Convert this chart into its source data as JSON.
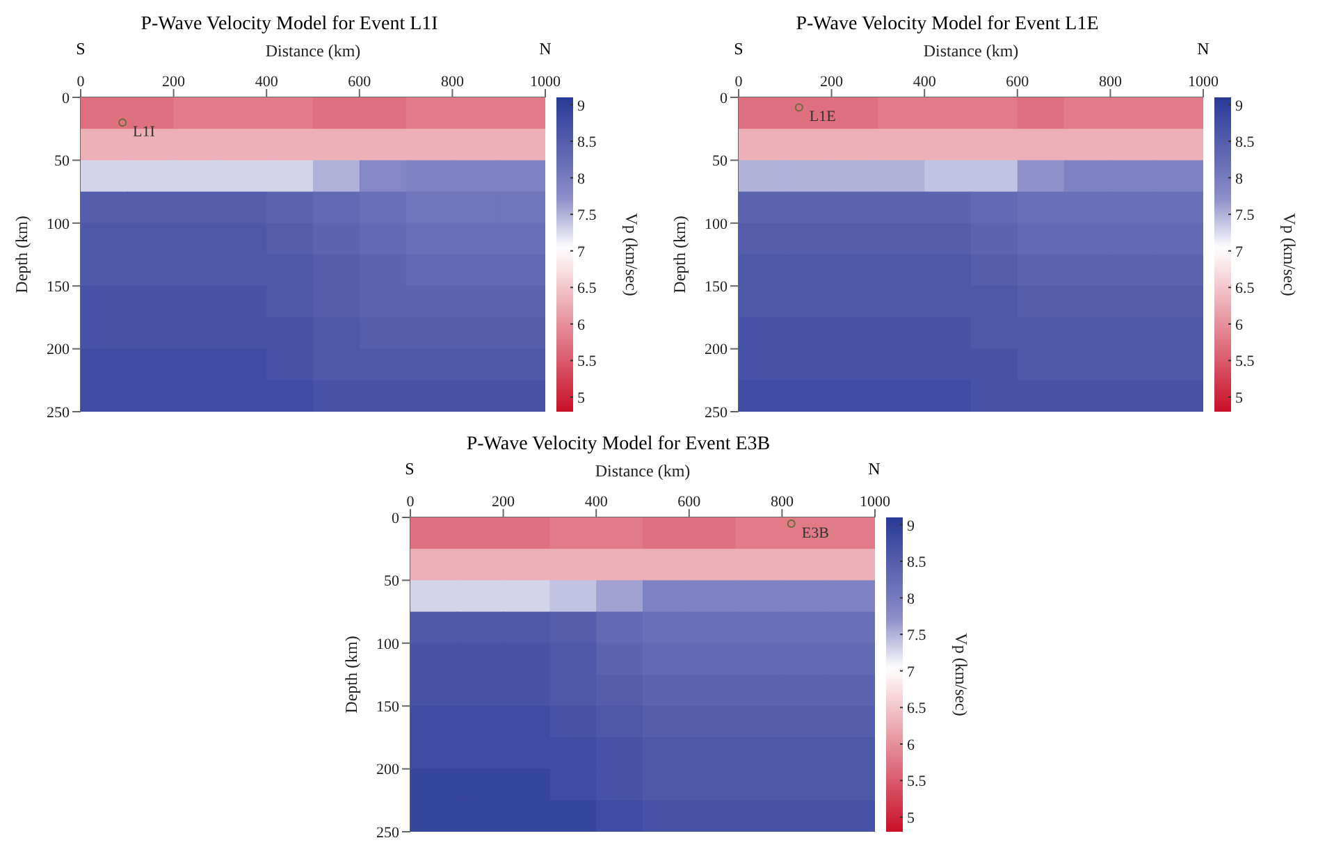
{
  "chart_data": [
    {
      "type": "heatmap",
      "title": "P-Wave Velocity Model for Event L1I",
      "xlabel": "Distance (km)",
      "ylabel": "Depth (km)",
      "clabel": "Vp (km/sec)",
      "xlim": [
        0,
        1000
      ],
      "xticks": [
        0,
        200,
        400,
        600,
        800,
        1000
      ],
      "ylim": [
        250,
        0
      ],
      "yticks": [
        0,
        50,
        100,
        150,
        200,
        250
      ],
      "clim": [
        4.8,
        9.1
      ],
      "cticks": [
        5,
        5.5,
        6,
        6.5,
        7,
        7.5,
        8,
        8.5,
        9
      ],
      "annotations": [
        "S",
        "N",
        {
          "text": "L1I",
          "x": 90,
          "y": 20
        }
      ],
      "cells": [
        [
          5.7,
          5.7,
          5.8,
          5.8,
          5.8,
          5.7,
          5.7,
          5.8,
          5.8,
          5.8
        ],
        [
          6.3,
          6.3,
          6.3,
          6.3,
          6.3,
          6.3,
          6.3,
          6.3,
          6.3,
          6.3
        ],
        [
          7.3,
          7.3,
          7.3,
          7.3,
          7.3,
          7.5,
          7.8,
          7.9,
          7.9,
          7.9
        ],
        [
          8.5,
          8.5,
          8.5,
          8.5,
          8.4,
          8.3,
          8.2,
          8.1,
          8.1,
          8.1
        ],
        [
          8.6,
          8.6,
          8.6,
          8.6,
          8.5,
          8.4,
          8.3,
          8.2,
          8.2,
          8.2
        ],
        [
          8.6,
          8.6,
          8.6,
          8.6,
          8.6,
          8.5,
          8.4,
          8.3,
          8.3,
          8.3
        ],
        [
          8.7,
          8.7,
          8.7,
          8.7,
          8.6,
          8.5,
          8.4,
          8.4,
          8.4,
          8.4
        ],
        [
          8.7,
          8.7,
          8.7,
          8.7,
          8.7,
          8.6,
          8.5,
          8.5,
          8.5,
          8.5
        ],
        [
          8.8,
          8.8,
          8.8,
          8.8,
          8.7,
          8.6,
          8.6,
          8.6,
          8.6,
          8.6
        ],
        [
          8.8,
          8.8,
          8.8,
          8.8,
          8.8,
          8.7,
          8.7,
          8.7,
          8.7,
          8.7
        ]
      ]
    },
    {
      "type": "heatmap",
      "title": "P-Wave Velocity Model for Event L1E",
      "xlabel": "Distance (km)",
      "ylabel": "Depth (km)",
      "clabel": "Vp (km/sec)",
      "xlim": [
        0,
        1000
      ],
      "xticks": [
        0,
        200,
        400,
        600,
        800,
        1000
      ],
      "ylim": [
        250,
        0
      ],
      "yticks": [
        0,
        50,
        100,
        150,
        200,
        250
      ],
      "clim": [
        4.8,
        9.1
      ],
      "cticks": [
        5,
        5.5,
        6,
        6.5,
        7,
        7.5,
        8,
        8.5,
        9
      ],
      "annotations": [
        "S",
        "N",
        {
          "text": "L1E",
          "x": 130,
          "y": 8
        }
      ],
      "cells": [
        [
          5.7,
          5.7,
          5.7,
          5.8,
          5.8,
          5.8,
          5.7,
          5.8,
          5.8,
          5.8
        ],
        [
          6.3,
          6.3,
          6.3,
          6.3,
          6.3,
          6.3,
          6.3,
          6.3,
          6.3,
          6.3
        ],
        [
          7.5,
          7.5,
          7.5,
          7.5,
          7.4,
          7.4,
          7.7,
          7.9,
          7.9,
          7.9
        ],
        [
          8.4,
          8.4,
          8.4,
          8.4,
          8.4,
          8.3,
          8.2,
          8.2,
          8.2,
          8.2
        ],
        [
          8.5,
          8.5,
          8.5,
          8.5,
          8.5,
          8.4,
          8.3,
          8.3,
          8.3,
          8.3
        ],
        [
          8.6,
          8.6,
          8.6,
          8.6,
          8.6,
          8.5,
          8.4,
          8.4,
          8.4,
          8.4
        ],
        [
          8.6,
          8.6,
          8.6,
          8.6,
          8.6,
          8.6,
          8.5,
          8.5,
          8.5,
          8.5
        ],
        [
          8.7,
          8.7,
          8.7,
          8.7,
          8.7,
          8.6,
          8.6,
          8.6,
          8.6,
          8.6
        ],
        [
          8.7,
          8.7,
          8.7,
          8.7,
          8.7,
          8.7,
          8.6,
          8.6,
          8.6,
          8.6
        ],
        [
          8.8,
          8.8,
          8.8,
          8.8,
          8.8,
          8.7,
          8.7,
          8.7,
          8.7,
          8.7
        ]
      ]
    },
    {
      "type": "heatmap",
      "title": "P-Wave Velocity Model for Event E3B",
      "xlabel": "Distance (km)",
      "ylabel": "Depth (km)",
      "clabel": "Vp (km/sec)",
      "xlim": [
        0,
        1000
      ],
      "xticks": [
        0,
        200,
        400,
        600,
        800,
        1000
      ],
      "ylim": [
        250,
        0
      ],
      "yticks": [
        0,
        50,
        100,
        150,
        200,
        250
      ],
      "clim": [
        4.8,
        9.1
      ],
      "cticks": [
        5,
        5.5,
        6,
        6.5,
        7,
        7.5,
        8,
        8.5,
        9
      ],
      "annotations": [
        "S",
        "N",
        {
          "text": "E3B",
          "x": 820,
          "y": 5
        }
      ],
      "cells": [
        [
          5.7,
          5.7,
          5.7,
          5.8,
          5.8,
          5.7,
          5.7,
          5.8,
          5.8,
          5.8
        ],
        [
          6.3,
          6.3,
          6.3,
          6.3,
          6.3,
          6.3,
          6.3,
          6.3,
          6.3,
          6.3
        ],
        [
          7.3,
          7.3,
          7.3,
          7.4,
          7.6,
          7.9,
          7.9,
          7.9,
          7.9,
          7.9
        ],
        [
          8.6,
          8.6,
          8.6,
          8.5,
          8.3,
          8.2,
          8.2,
          8.2,
          8.2,
          8.2
        ],
        [
          8.7,
          8.7,
          8.7,
          8.6,
          8.4,
          8.3,
          8.3,
          8.3,
          8.3,
          8.3
        ],
        [
          8.7,
          8.7,
          8.7,
          8.6,
          8.5,
          8.4,
          8.4,
          8.4,
          8.4,
          8.4
        ],
        [
          8.8,
          8.8,
          8.8,
          8.7,
          8.6,
          8.5,
          8.5,
          8.5,
          8.5,
          8.5
        ],
        [
          8.8,
          8.8,
          8.8,
          8.8,
          8.7,
          8.6,
          8.6,
          8.6,
          8.6,
          8.6
        ],
        [
          8.9,
          8.9,
          8.9,
          8.8,
          8.7,
          8.6,
          8.6,
          8.6,
          8.6,
          8.6
        ],
        [
          8.9,
          8.9,
          8.9,
          8.9,
          8.8,
          8.7,
          8.7,
          8.7,
          8.7,
          8.7
        ]
      ]
    }
  ]
}
